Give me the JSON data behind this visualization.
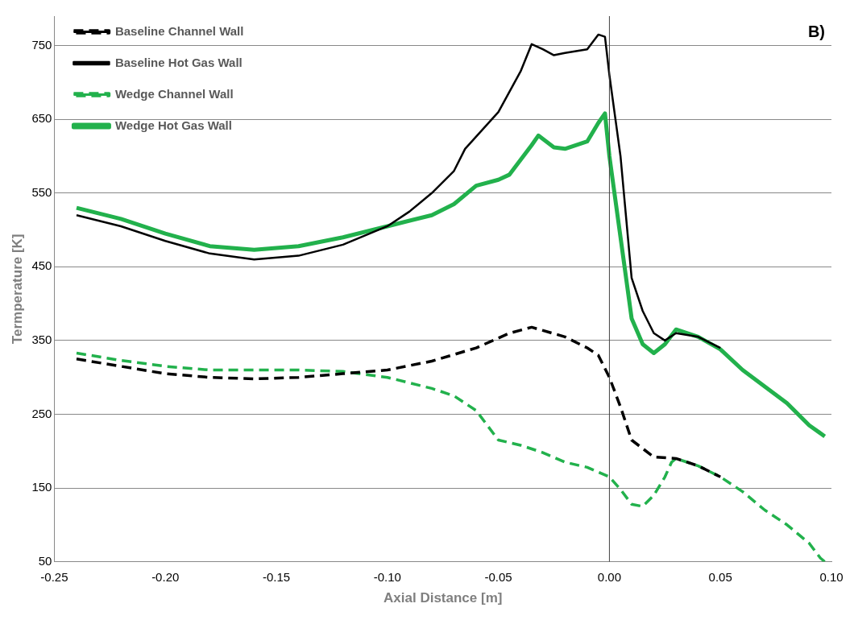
{
  "chart_data": {
    "type": "line",
    "xlabel": "Axial Distance [m]",
    "ylabel": "Termperature [K]",
    "annotations": [
      "B)"
    ],
    "xlim": [
      -0.25,
      0.1
    ],
    "xticks": [
      {
        "value": -0.25,
        "label": "-0.25"
      },
      {
        "value": -0.2,
        "label": "-0.20"
      },
      {
        "value": -0.15,
        "label": "-0.15"
      },
      {
        "value": -0.1,
        "label": "-0.10"
      },
      {
        "value": -0.05,
        "label": "-0.05"
      },
      {
        "value": 0,
        "label": "0.00"
      },
      {
        "value": 0.05,
        "label": "0.05"
      },
      {
        "value": 0.1,
        "label": "0.10"
      }
    ],
    "ylim": [
      50,
      790
    ],
    "yticks": [
      50,
      150,
      250,
      350,
      450,
      550,
      650,
      750
    ],
    "grid": "y",
    "legend": "top left",
    "marker": "none",
    "ref_lines": [
      {
        "axis": "x",
        "value": 0,
        "color": "#404040"
      }
    ],
    "series": [
      {
        "name": "Baseline Channel Wall",
        "color": "#000000",
        "line_style": "dashed",
        "x": [
          -0.24,
          -0.22,
          -0.2,
          -0.18,
          -0.16,
          -0.14,
          -0.12,
          -0.1,
          -0.08,
          -0.06,
          -0.045,
          -0.035,
          -0.02,
          -0.01,
          -0.005,
          0,
          0.005,
          0.01,
          0.02,
          0.03,
          0.04,
          0.05
        ],
        "values": [
          325,
          315,
          305,
          300,
          298,
          300,
          305,
          310,
          322,
          340,
          360,
          368,
          355,
          340,
          330,
          300,
          260,
          215,
          192,
          190,
          180,
          165
        ]
      },
      {
        "name": "Baseline Hot Gas Wall",
        "color": "#000000",
        "line_style": "solid",
        "x": [
          -0.24,
          -0.22,
          -0.2,
          -0.18,
          -0.16,
          -0.14,
          -0.12,
          -0.1,
          -0.09,
          -0.08,
          -0.07,
          -0.065,
          -0.05,
          -0.04,
          -0.035,
          -0.03,
          -0.025,
          -0.02,
          -0.01,
          -0.005,
          -0.002,
          0,
          0.005,
          0.01,
          0.015,
          0.02,
          0.025,
          0.03,
          0.04,
          0.05
        ],
        "values": [
          520,
          505,
          485,
          468,
          460,
          465,
          480,
          505,
          525,
          550,
          580,
          610,
          660,
          715,
          752,
          745,
          737,
          740,
          745,
          765,
          762,
          710,
          600,
          435,
          390,
          360,
          350,
          360,
          355,
          340
        ]
      },
      {
        "name": "Wedge Channel Wall",
        "color": "#22b14c",
        "line_style": "dashed",
        "x": [
          -0.24,
          -0.22,
          -0.2,
          -0.18,
          -0.16,
          -0.14,
          -0.12,
          -0.1,
          -0.08,
          -0.07,
          -0.06,
          -0.05,
          -0.04,
          -0.03,
          -0.02,
          -0.01,
          0,
          0.005,
          0.01,
          0.015,
          0.02,
          0.025,
          0.028,
          0.03,
          0.04,
          0.05,
          0.06,
          0.07,
          0.08,
          0.09,
          0.095,
          0.097
        ],
        "values": [
          333,
          323,
          315,
          310,
          310,
          310,
          308,
          300,
          285,
          275,
          255,
          215,
          208,
          198,
          185,
          178,
          165,
          148,
          128,
          125,
          140,
          165,
          185,
          190,
          180,
          165,
          145,
          120,
          100,
          75,
          55,
          50
        ]
      },
      {
        "name": "Wedge Hot Gas Wall",
        "color": "#22b14c",
        "line_style": "solid",
        "x": [
          -0.24,
          -0.22,
          -0.2,
          -0.18,
          -0.16,
          -0.14,
          -0.12,
          -0.1,
          -0.08,
          -0.07,
          -0.06,
          -0.05,
          -0.045,
          -0.035,
          -0.032,
          -0.025,
          -0.02,
          -0.01,
          -0.005,
          -0.002,
          0,
          0.005,
          0.01,
          0.015,
          0.02,
          0.025,
          0.03,
          0.04,
          0.05,
          0.06,
          0.08,
          0.09,
          0.097
        ],
        "values": [
          530,
          515,
          495,
          478,
          473,
          478,
          490,
          505,
          520,
          535,
          560,
          568,
          575,
          615,
          628,
          612,
          610,
          620,
          645,
          658,
          600,
          490,
          380,
          345,
          333,
          345,
          365,
          355,
          338,
          310,
          265,
          235,
          220
        ]
      }
    ]
  }
}
